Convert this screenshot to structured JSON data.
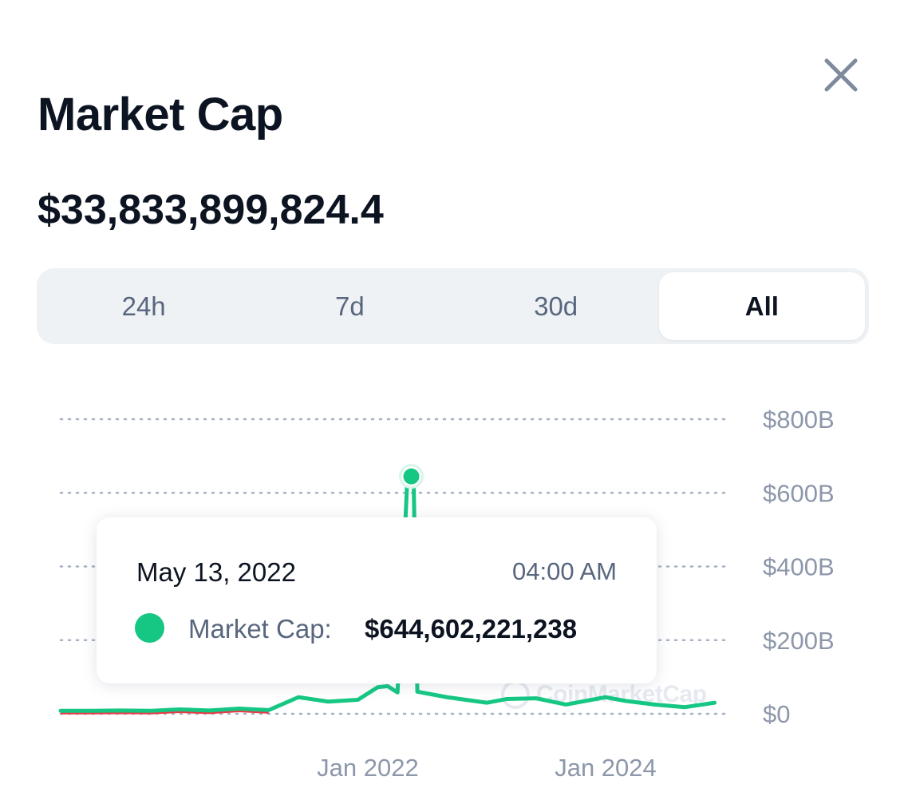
{
  "header": {
    "title": "Market Cap",
    "value": "$33,833,899,824.4"
  },
  "close": {
    "icon": "close-icon"
  },
  "tabs": [
    {
      "label": "24h",
      "active": false
    },
    {
      "label": "7d",
      "active": false
    },
    {
      "label": "30d",
      "active": false
    },
    {
      "label": "All",
      "active": true
    }
  ],
  "tooltip": {
    "date": "May 13, 2022",
    "time": "04:00 AM",
    "label": "Market Cap:",
    "value": "$644,602,221,238"
  },
  "watermark": "CoinMarketCap",
  "colors": {
    "up": "#16c784",
    "down": "#ea3943",
    "grid": "#a6b0c3",
    "tick": "#8d97aa"
  },
  "chart_data": {
    "type": "line",
    "title": "",
    "xlabel": "",
    "ylabel": "",
    "x_ticks": [
      "Jan 2022",
      "Jan 2024"
    ],
    "y_ticks": [
      "$0",
      "$200B",
      "$400B",
      "$600B",
      "$800B"
    ],
    "ylim": [
      0,
      800
    ],
    "xlim": [
      "2019-06",
      "2025-01"
    ],
    "y_unit": "B USD",
    "grid": true,
    "series": [
      {
        "points": [
          [
            "2019-06",
            8
          ],
          [
            "2019-09",
            8
          ],
          [
            "2019-12",
            9
          ],
          [
            "2020-03",
            8
          ],
          [
            "2020-06",
            12
          ],
          [
            "2020-09",
            9
          ],
          [
            "2020-12",
            14
          ],
          [
            "2021-03",
            10
          ],
          [
            "2021-06",
            45
          ],
          [
            "2021-09",
            33
          ],
          [
            "2021-12",
            38
          ],
          [
            "2022-02",
            72
          ],
          [
            "2022-03",
            75
          ],
          [
            "2022-04",
            58
          ],
          [
            "2022-05",
            644
          ],
          [
            "2022-05-20",
            640
          ],
          [
            "2022-06",
            60
          ],
          [
            "2022-09",
            45
          ],
          [
            "2023-01",
            30
          ],
          [
            "2023-03",
            40
          ],
          [
            "2023-06",
            42
          ],
          [
            "2023-09",
            25
          ],
          [
            "2024-01",
            45
          ],
          [
            "2024-03",
            35
          ],
          [
            "2024-06",
            25
          ],
          [
            "2024-09",
            18
          ],
          [
            "2024-12",
            30
          ]
        ]
      }
    ],
    "highlight": {
      "x": "2022-05-13",
      "y": 644.6
    }
  }
}
